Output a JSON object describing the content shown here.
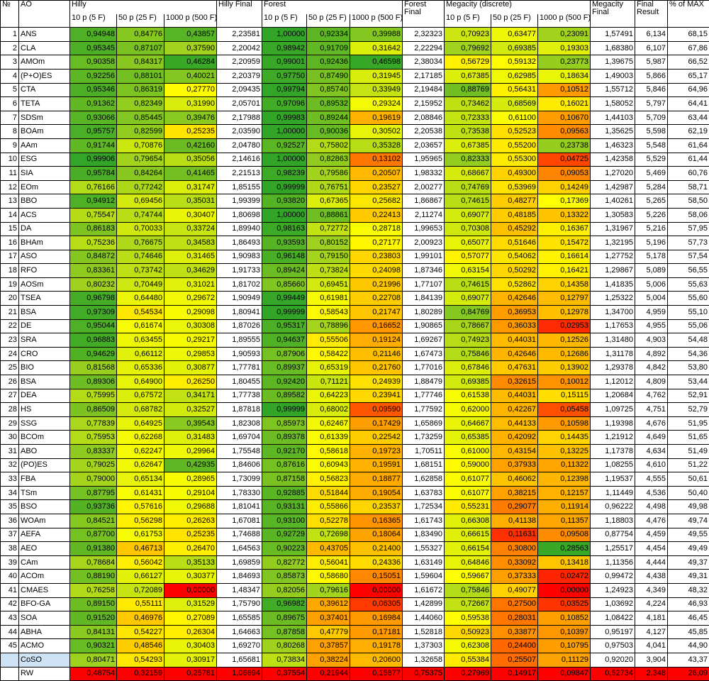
{
  "headers": {
    "num": "№",
    "ao": "AO",
    "hilly": "Hilly",
    "hilly_final": "Hilly Final",
    "forest": "Forest",
    "forest_final": "Forest Final",
    "megacity": "Megacity (discrete)",
    "megacity_final": "Megacity Final",
    "final_result": "Final Result",
    "pct_max": "% of MAX",
    "sub": [
      "10 p (5 F)",
      "50 p (25 F)",
      "1000 p (500 F)"
    ]
  },
  "rows": [
    {
      "n": "1",
      "ao": "ANS",
      "v": [
        "0,94948",
        "0,84776",
        "0,43857",
        "2,23581",
        "1,00000",
        "0,92334",
        "0,39988",
        "2,32323",
        "0,70923",
        "0,63477",
        "0,23091",
        "1,57491",
        "6,134",
        "68,15"
      ]
    },
    {
      "n": "2",
      "ao": "CLA",
      "v": [
        "0,95345",
        "0,87107",
        "0,37590",
        "2,20042",
        "0,98942",
        "0,91709",
        "0,31642",
        "2,22294",
        "0,79692",
        "0,69385",
        "0,19303",
        "1,68380",
        "6,107",
        "67,86"
      ]
    },
    {
      "n": "3",
      "ao": "AMOm",
      "v": [
        "0,90358",
        "0,84317",
        "0,46284",
        "2,20959",
        "0,99001",
        "0,92436",
        "0,46598",
        "2,38034",
        "0,56729",
        "0,59132",
        "0,23773",
        "1,39675",
        "5,987",
        "66,52"
      ]
    },
    {
      "n": "4",
      "ao": "(P+O)ES",
      "v": [
        "0,92256",
        "0,88101",
        "0,40021",
        "2,20379",
        "0,97750",
        "0,87490",
        "0,31945",
        "2,17185",
        "0,67385",
        "0,62985",
        "0,18634",
        "1,49003",
        "5,866",
        "65,17"
      ]
    },
    {
      "n": "5",
      "ao": "CTA",
      "v": [
        "0,95346",
        "0,86319",
        "0,27770",
        "2,09435",
        "0,99794",
        "0,85740",
        "0,33949",
        "2,19484",
        "0,88769",
        "0,56431",
        "0,10512",
        "1,55712",
        "5,846",
        "64,96"
      ]
    },
    {
      "n": "6",
      "ao": "TETA",
      "v": [
        "0,91362",
        "0,82349",
        "0,31990",
        "2,05701",
        "0,97096",
        "0,89532",
        "0,29324",
        "2,15952",
        "0,73462",
        "0,68569",
        "0,16021",
        "1,58052",
        "5,797",
        "64,41"
      ]
    },
    {
      "n": "7",
      "ao": "SDSm",
      "v": [
        "0,93066",
        "0,85445",
        "0,39476",
        "2,17988",
        "0,99983",
        "0,89244",
        "0,19619",
        "2,08846",
        "0,72333",
        "0,61100",
        "0,10670",
        "1,44103",
        "5,709",
        "63,44"
      ]
    },
    {
      "n": "8",
      "ao": "BOAm",
      "v": [
        "0,95757",
        "0,82599",
        "0,25235",
        "2,03590",
        "1,00000",
        "0,90036",
        "0,30502",
        "2,20538",
        "0,73538",
        "0,52523",
        "0,09563",
        "1,35625",
        "5,598",
        "62,19"
      ]
    },
    {
      "n": "9",
      "ao": "AAm",
      "v": [
        "0,91744",
        "0,70876",
        "0,42160",
        "2,04780",
        "0,92527",
        "0,75802",
        "0,35328",
        "2,03657",
        "0,67385",
        "0,55200",
        "0,23738",
        "1,46323",
        "5,548",
        "61,64"
      ]
    },
    {
      "n": "10",
      "ao": "ESG",
      "v": [
        "0,99906",
        "0,79654",
        "0,35056",
        "2,14616",
        "1,00000",
        "0,82863",
        "0,13102",
        "1,95965",
        "0,82333",
        "0,55300",
        "0,04725",
        "1,42358",
        "5,529",
        "61,44"
      ]
    },
    {
      "n": "11",
      "ao": "SIA",
      "v": [
        "0,95784",
        "0,84264",
        "0,41465",
        "2,21513",
        "0,98239",
        "0,79586",
        "0,20507",
        "1,98332",
        "0,68667",
        "0,49300",
        "0,09053",
        "1,27020",
        "5,469",
        "60,76"
      ]
    },
    {
      "n": "12",
      "ao": "EOm",
      "v": [
        "0,76166",
        "0,77242",
        "0,31747",
        "1,85155",
        "0,99999",
        "0,76751",
        "0,23527",
        "2,00277",
        "0,74769",
        "0,53969",
        "0,14249",
        "1,42987",
        "5,284",
        "58,71"
      ]
    },
    {
      "n": "13",
      "ao": "BBO",
      "v": [
        "0,94912",
        "0,69456",
        "0,35031",
        "1,99399",
        "0,93820",
        "0,67365",
        "0,25682",
        "1,86867",
        "0,74615",
        "0,48277",
        "0,17369",
        "1,40261",
        "5,265",
        "58,50"
      ]
    },
    {
      "n": "14",
      "ao": "ACS",
      "v": [
        "0,75547",
        "0,74744",
        "0,30407",
        "1,80698",
        "1,00000",
        "0,88861",
        "0,22413",
        "2,11274",
        "0,69077",
        "0,48185",
        "0,13322",
        "1,30583",
        "5,226",
        "58,06"
      ]
    },
    {
      "n": "15",
      "ao": "DA",
      "v": [
        "0,86183",
        "0,70033",
        "0,33724",
        "1,89940",
        "0,98163",
        "0,72772",
        "0,28718",
        "1,99653",
        "0,70308",
        "0,45292",
        "0,16367",
        "1,31967",
        "5,216",
        "57,95"
      ]
    },
    {
      "n": "16",
      "ao": "BHAm",
      "v": [
        "0,75236",
        "0,76675",
        "0,34583",
        "1,86493",
        "0,93593",
        "0,80152",
        "0,27177",
        "2,00923",
        "0,65077",
        "0,51646",
        "0,15472",
        "1,32195",
        "5,196",
        "57,73"
      ]
    },
    {
      "n": "17",
      "ao": "ASO",
      "v": [
        "0,84872",
        "0,74646",
        "0,31465",
        "1,90983",
        "0,96148",
        "0,79150",
        "0,23803",
        "1,99101",
        "0,57077",
        "0,54062",
        "0,16614",
        "1,27752",
        "5,178",
        "57,54"
      ]
    },
    {
      "n": "18",
      "ao": "RFO",
      "v": [
        "0,83361",
        "0,73742",
        "0,34629",
        "1,91733",
        "0,89424",
        "0,73824",
        "0,24098",
        "1,87346",
        "0,63154",
        "0,50292",
        "0,16421",
        "1,29867",
        "5,089",
        "56,55"
      ]
    },
    {
      "n": "19",
      "ao": "AOSm",
      "v": [
        "0,80232",
        "0,70449",
        "0,31021",
        "1,81702",
        "0,85660",
        "0,69451",
        "0,21996",
        "1,77107",
        "0,74615",
        "0,52862",
        "0,14358",
        "1,41835",
        "5,006",
        "55,63"
      ]
    },
    {
      "n": "20",
      "ao": "TSEA",
      "v": [
        "0,96798",
        "0,64480",
        "0,29672",
        "1,90949",
        "0,99449",
        "0,61981",
        "0,22708",
        "1,84139",
        "0,69077",
        "0,42646",
        "0,12797",
        "1,25322",
        "5,004",
        "55,60"
      ]
    },
    {
      "n": "21",
      "ao": "BSA",
      "v": [
        "0,97309",
        "0,54534",
        "0,29098",
        "1,80941",
        "0,99999",
        "0,58543",
        "0,21747",
        "1,80289",
        "0,84769",
        "0,36953",
        "0,12978",
        "1,34700",
        "4,959",
        "55,10"
      ]
    },
    {
      "n": "22",
      "ao": "DE",
      "v": [
        "0,95044",
        "0,61674",
        "0,30308",
        "1,87026",
        "0,95317",
        "0,78896",
        "0,16652",
        "1,90865",
        "0,78667",
        "0,36033",
        "0,02953",
        "1,17653",
        "4,955",
        "55,06"
      ]
    },
    {
      "n": "23",
      "ao": "SRA",
      "v": [
        "0,96883",
        "0,63455",
        "0,29217",
        "1,89555",
        "0,94637",
        "0,55506",
        "0,19124",
        "1,69267",
        "0,74923",
        "0,44031",
        "0,12526",
        "1,31480",
        "4,903",
        "54,48"
      ]
    },
    {
      "n": "24",
      "ao": "CRO",
      "v": [
        "0,94629",
        "0,66112",
        "0,29853",
        "1,90593",
        "0,87906",
        "0,58422",
        "0,21146",
        "1,67473",
        "0,75846",
        "0,42646",
        "0,12686",
        "1,31178",
        "4,892",
        "54,36"
      ]
    },
    {
      "n": "25",
      "ao": "BIO",
      "v": [
        "0,81568",
        "0,65336",
        "0,30877",
        "1,77781",
        "0,89937",
        "0,65319",
        "0,21760",
        "1,77016",
        "0,67846",
        "0,47631",
        "0,13902",
        "1,29378",
        "4,842",
        "53,80"
      ]
    },
    {
      "n": "26",
      "ao": "BSA",
      "v": [
        "0,89306",
        "0,64900",
        "0,26250",
        "1,80455",
        "0,92420",
        "0,71121",
        "0,24939",
        "1,88479",
        "0,69385",
        "0,32615",
        "0,10012",
        "1,12012",
        "4,809",
        "53,44"
      ]
    },
    {
      "n": "27",
      "ao": "DEA",
      "v": [
        "0,75995",
        "0,67572",
        "0,34171",
        "1,77738",
        "0,89582",
        "0,64223",
        "0,23941",
        "1,77746",
        "0,61538",
        "0,44031",
        "0,15115",
        "1,20684",
        "4,762",
        "52,91"
      ]
    },
    {
      "n": "28",
      "ao": "HS",
      "v": [
        "0,86509",
        "0,68782",
        "0,32527",
        "1,87818",
        "0,99999",
        "0,68002",
        "0,09590",
        "1,77592",
        "0,62000",
        "0,42267",
        "0,05458",
        "1,09725",
        "4,751",
        "52,79"
      ]
    },
    {
      "n": "29",
      "ao": "SSG",
      "v": [
        "0,77839",
        "0,64925",
        "0,39543",
        "1,82308",
        "0,85973",
        "0,62467",
        "0,17429",
        "1,65869",
        "0,64667",
        "0,44133",
        "0,10598",
        "1,19398",
        "4,676",
        "51,95"
      ]
    },
    {
      "n": "30",
      "ao": "BCOm",
      "v": [
        "0,75953",
        "0,62268",
        "0,31483",
        "1,69704",
        "0,89378",
        "0,61339",
        "0,22542",
        "1,73259",
        "0,65385",
        "0,42092",
        "0,14435",
        "1,21912",
        "4,649",
        "51,65"
      ]
    },
    {
      "n": "31",
      "ao": "ABO",
      "v": [
        "0,83337",
        "0,62247",
        "0,29964",
        "1,75548",
        "0,92170",
        "0,58618",
        "0,19723",
        "1,70511",
        "0,61000",
        "0,43154",
        "0,13225",
        "1,17378",
        "4,634",
        "51,49"
      ]
    },
    {
      "n": "32",
      "ao": "(PO)ES",
      "v": [
        "0,79025",
        "0,62647",
        "0,42935",
        "1,84606",
        "0,87616",
        "0,60943",
        "0,19591",
        "1,68151",
        "0,59000",
        "0,37933",
        "0,11322",
        "1,08255",
        "4,610",
        "51,22"
      ]
    },
    {
      "n": "33",
      "ao": "FBA",
      "v": [
        "0,79000",
        "0,65134",
        "0,28965",
        "1,73099",
        "0,87158",
        "0,56823",
        "0,18877",
        "1,62858",
        "0,61077",
        "0,46062",
        "0,12398",
        "1,19537",
        "4,555",
        "50,61"
      ]
    },
    {
      "n": "34",
      "ao": "TSm",
      "v": [
        "0,87795",
        "0,61431",
        "0,29104",
        "1,78330",
        "0,92885",
        "0,51844",
        "0,19054",
        "1,63783",
        "0,61077",
        "0,38215",
        "0,12157",
        "1,11449",
        "4,536",
        "50,40"
      ]
    },
    {
      "n": "35",
      "ao": "BSO",
      "v": [
        "0,93736",
        "0,57616",
        "0,29688",
        "1,81041",
        "0,93131",
        "0,55866",
        "0,23537",
        "1,72534",
        "0,55231",
        "0,29077",
        "0,11914",
        "0,96222",
        "4,498",
        "49,98"
      ]
    },
    {
      "n": "36",
      "ao": "WOAm",
      "v": [
        "0,84521",
        "0,56298",
        "0,26263",
        "1,67081",
        "0,93100",
        "0,52278",
        "0,16365",
        "1,61743",
        "0,66308",
        "0,41138",
        "0,11357",
        "1,18803",
        "4,476",
        "49,74"
      ]
    },
    {
      "n": "37",
      "ao": "AEFA",
      "v": [
        "0,87700",
        "0,61753",
        "0,25235",
        "1,74688",
        "0,92729",
        "0,72698",
        "0,18064",
        "1,83490",
        "0,66615",
        "0,11631",
        "0,09508",
        "0,87754",
        "4,459",
        "49,55"
      ]
    },
    {
      "n": "38",
      "ao": "AEO",
      "v": [
        "0,91380",
        "0,46713",
        "0,26470",
        "1,64563",
        "0,90223",
        "0,43705",
        "0,21400",
        "1,55327",
        "0,66154",
        "0,30800",
        "0,28563",
        "1,25517",
        "4,454",
        "49,49"
      ]
    },
    {
      "n": "39",
      "ao": "CAm",
      "v": [
        "0,78684",
        "0,56042",
        "0,35133",
        "1,69859",
        "0,82772",
        "0,56041",
        "0,24336",
        "1,63149",
        "0,64846",
        "0,33092",
        "0,13418",
        "1,11356",
        "4,444",
        "49,37"
      ]
    },
    {
      "n": "40",
      "ao": "ACOm",
      "v": [
        "0,88190",
        "0,66127",
        "0,30377",
        "1,84693",
        "0,85873",
        "0,58680",
        "0,15051",
        "1,59604",
        "0,59667",
        "0,37333",
        "0,02472",
        "0,99472",
        "4,438",
        "49,31"
      ]
    },
    {
      "n": "41",
      "ao": "CMAES",
      "v": [
        "0,76258",
        "0,72089",
        "0,00000",
        "1,48347",
        "0,82056",
        "0,79616",
        "0,00000",
        "1,61672",
        "0,75846",
        "0,49077",
        "0,00000",
        "1,24923",
        "4,349",
        "48,32"
      ]
    },
    {
      "n": "42",
      "ao": "BFO-GA",
      "v": [
        "0,89150",
        "0,55111",
        "0,31529",
        "1,75790",
        "0,96982",
        "0,39612",
        "0,06305",
        "1,42899",
        "0,72667",
        "0,27500",
        "0,03525",
        "1,03692",
        "4,224",
        "46,93"
      ]
    },
    {
      "n": "43",
      "ao": "SOA",
      "v": [
        "0,91520",
        "0,46976",
        "0,27089",
        "1,65585",
        "0,89675",
        "0,37401",
        "0,16984",
        "1,44060",
        "0,59538",
        "0,28031",
        "0,10852",
        "1,08422",
        "4,181",
        "46,45"
      ]
    },
    {
      "n": "44",
      "ao": "ABHA",
      "v": [
        "0,84131",
        "0,54227",
        "0,26304",
        "1,64663",
        "0,87858",
        "0,47779",
        "0,17181",
        "1,52818",
        "0,50923",
        "0,33877",
        "0,10397",
        "0,95197",
        "4,127",
        "45,85"
      ]
    },
    {
      "n": "45",
      "ao": "ACMO",
      "v": [
        "0,90321",
        "0,48546",
        "0,30403",
        "1,69270",
        "0,80268",
        "0,37857",
        "0,19178",
        "1,37303",
        "0,62308",
        "0,24400",
        "0,10795",
        "0,97503",
        "4,041",
        "44,90"
      ]
    },
    {
      "n": "",
      "ao": "CoSO",
      "v": [
        "0,80471",
        "0,54293",
        "0,30917",
        "1,65681",
        "0,73834",
        "0,38224",
        "0,20600",
        "1,32658",
        "0,55384",
        "0,25507",
        "0,11129",
        "0,92020",
        "3,904",
        "43,37"
      ]
    },
    {
      "n": "",
      "ao": "RW",
      "v": [
        "0,48754",
        "0,32159",
        "0,25781",
        "1,06694",
        "0,37554",
        "0,21944",
        "0,15877",
        "0,75375",
        "0,27969",
        "0,14917",
        "0,09847",
        "0,52734",
        "2,348",
        "26,09"
      ]
    }
  ]
}
